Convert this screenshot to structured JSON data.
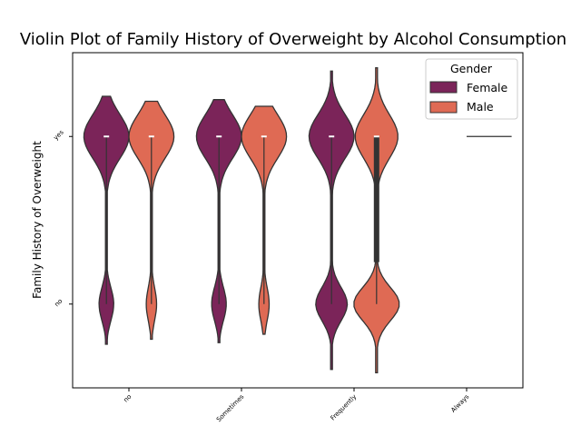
{
  "chart_data": {
    "type": "violin",
    "title": "Violin Plot of Family History of Overweight by Alcohol Consumption",
    "xlabel": "",
    "ylabel": "Family History of Overweight",
    "categories": [
      "no",
      "Sometimes",
      "Frequently",
      "Always"
    ],
    "y_categories": [
      "yes",
      "no"
    ],
    "y_range": [
      -0.5,
      1.5
    ],
    "legend": {
      "title": "Gender",
      "position": "top-right"
    },
    "series": [
      {
        "name": "Female",
        "color": "#7b2459",
        "groups": [
          {
            "category": "no",
            "median": 1,
            "extent": [
              -0.24,
              1.24
            ],
            "mass_yes": 0.8
          },
          {
            "category": "Sometimes",
            "median": 1,
            "extent": [
              -0.23,
              1.22
            ],
            "mass_yes": 0.8
          },
          {
            "category": "Frequently",
            "median": 1,
            "extent": [
              -0.39,
              1.39
            ],
            "mass_yes": 0.65
          },
          {
            "category": "Always",
            "median": null,
            "extent": null
          }
        ]
      },
      {
        "name": "Male",
        "color": "#df6a54",
        "groups": [
          {
            "category": "no",
            "median": 1,
            "extent": [
              -0.21,
              1.21
            ],
            "mass_yes": 0.85
          },
          {
            "category": "Sometimes",
            "median": 1,
            "extent": [
              -0.18,
              1.18
            ],
            "mass_yes": 0.85
          },
          {
            "category": "Frequently",
            "median": 1,
            "q1": 0.25,
            "q3": 1,
            "extent": [
              -0.41,
              1.41
            ],
            "mass_yes": 0.55
          },
          {
            "category": "Always",
            "median": 1,
            "extent": [
              1,
              1
            ],
            "mass_yes": 1
          }
        ]
      }
    ],
    "grid": false
  }
}
